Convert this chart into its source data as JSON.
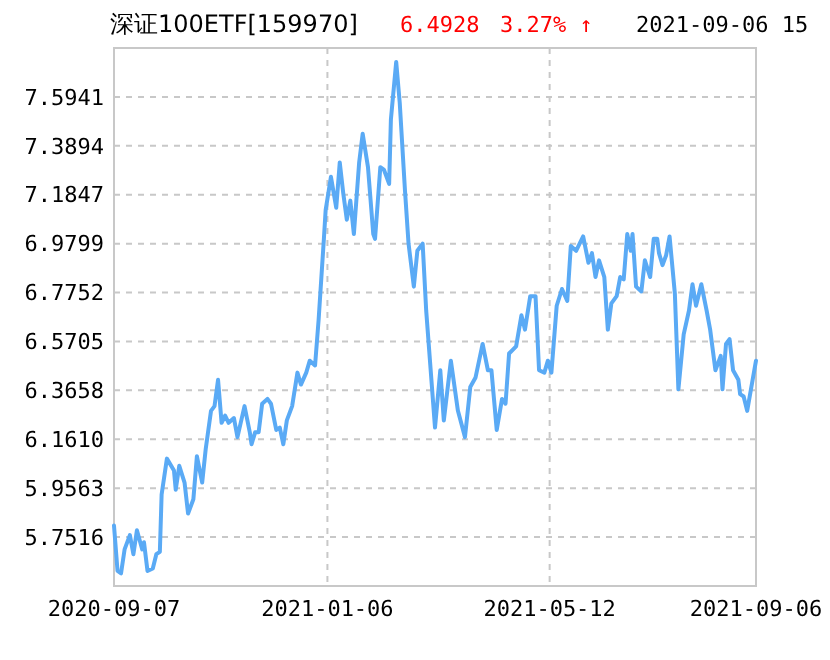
{
  "chart_data": {
    "type": "line",
    "title": "深证100ETF[159970]",
    "annotations": [
      "6.4928",
      "3.27% ↑",
      "2021-09-06 15"
    ],
    "x": [
      "2020-09-07",
      "2020-09-09",
      "2020-09-11",
      "2020-09-13",
      "2020-09-16",
      "2020-09-18",
      "2020-09-20",
      "2020-09-23",
      "2020-09-24",
      "2020-09-26",
      "2020-09-29",
      "2020-10-01",
      "2020-10-03",
      "2020-10-04",
      "2020-10-07",
      "2020-10-11",
      "2020-10-12",
      "2020-10-14",
      "2020-10-17",
      "2020-10-19",
      "2020-10-22",
      "2020-10-24",
      "2020-10-27",
      "2020-10-29",
      "2020-11-01",
      "2020-11-03",
      "2020-11-05",
      "2020-11-07",
      "2020-11-09",
      "2020-11-11",
      "2020-11-14",
      "2020-11-16",
      "2020-11-20",
      "2020-11-23",
      "2020-11-24",
      "2020-11-26",
      "2020-11-28",
      "2020-11-30",
      "2020-12-03",
      "2020-12-05",
      "2020-12-08",
      "2020-12-10",
      "2020-12-12",
      "2020-12-14",
      "2020-12-17",
      "2020-12-20",
      "2020-12-22",
      "2020-12-25",
      "2020-12-27",
      "2020-12-30",
      "2021-01-01",
      "2021-01-04",
      "2021-01-05",
      "2021-01-08",
      "2021-01-11",
      "2021-01-13",
      "2021-01-15",
      "2021-01-17",
      "2021-01-19",
      "2021-01-21",
      "2021-01-24",
      "2021-01-26",
      "2021-01-29",
      "2021-02-01",
      "2021-02-02",
      "2021-02-05",
      "2021-02-07",
      "2021-02-10",
      "2021-02-11",
      "2021-02-14",
      "2021-02-16",
      "2021-02-19",
      "2021-02-21",
      "2021-02-24",
      "2021-02-26",
      "2021-03-01",
      "2021-03-03",
      "2021-03-08",
      "2021-03-11",
      "2021-03-13",
      "2021-03-17",
      "2021-03-21",
      "2021-03-25",
      "2021-03-28",
      "2021-03-31",
      "2021-04-04",
      "2021-04-07",
      "2021-04-09",
      "2021-04-12",
      "2021-04-15",
      "2021-04-17",
      "2021-04-19",
      "2021-04-23",
      "2021-04-26",
      "2021-04-28",
      "2021-05-01",
      "2021-05-04",
      "2021-05-06",
      "2021-05-09",
      "2021-05-11",
      "2021-05-13",
      "2021-05-16",
      "2021-05-19",
      "2021-05-22",
      "2021-05-24",
      "2021-05-27",
      "2021-05-31",
      "2021-06-03",
      "2021-06-05",
      "2021-06-07",
      "2021-06-09",
      "2021-06-12",
      "2021-06-14",
      "2021-06-16",
      "2021-06-19",
      "2021-06-21",
      "2021-06-23",
      "2021-06-25",
      "2021-06-27",
      "2021-06-28",
      "2021-06-30",
      "2021-07-03",
      "2021-07-05",
      "2021-07-08",
      "2021-07-10",
      "2021-07-12",
      "2021-07-13",
      "2021-07-15",
      "2021-07-17",
      "2021-07-19",
      "2021-07-22",
      "2021-07-24",
      "2021-07-27",
      "2021-07-30",
      "2021-08-01",
      "2021-08-03",
      "2021-08-06",
      "2021-08-09",
      "2021-08-11",
      "2021-08-14",
      "2021-08-17",
      "2021-08-18",
      "2021-08-20",
      "2021-08-22",
      "2021-08-24",
      "2021-08-27",
      "2021-08-28",
      "2021-08-30",
      "2021-09-01",
      "2021-09-06"
    ],
    "series": [
      {
        "color": "#5aaaf5",
        "values": [
          5.8,
          5.61,
          5.6,
          5.7,
          5.76,
          5.68,
          5.78,
          5.7,
          5.73,
          5.61,
          5.62,
          5.68,
          5.69,
          5.93,
          6.08,
          6.03,
          5.95,
          6.05,
          5.98,
          5.85,
          5.91,
          6.09,
          5.98,
          6.12,
          6.28,
          6.3,
          6.41,
          6.23,
          6.26,
          6.23,
          6.25,
          6.17,
          6.3,
          6.19,
          6.14,
          6.19,
          6.19,
          6.31,
          6.33,
          6.31,
          6.2,
          6.21,
          6.14,
          6.24,
          6.3,
          6.44,
          6.39,
          6.44,
          6.49,
          6.47,
          6.66,
          7.0,
          7.12,
          7.26,
          7.13,
          7.32,
          7.19,
          7.08,
          7.16,
          7.02,
          7.32,
          7.44,
          7.3,
          7.02,
          7.0,
          7.3,
          7.29,
          7.23,
          7.5,
          7.74,
          7.57,
          7.2,
          6.98,
          6.8,
          6.95,
          6.98,
          6.7,
          6.21,
          6.45,
          6.24,
          6.49,
          6.28,
          6.17,
          6.38,
          6.42,
          6.56,
          6.45,
          6.45,
          6.2,
          6.33,
          6.31,
          6.52,
          6.55,
          6.68,
          6.62,
          6.76,
          6.76,
          6.45,
          6.44,
          6.49,
          6.44,
          6.72,
          6.79,
          6.74,
          6.97,
          6.95,
          7.01,
          6.9,
          6.94,
          6.84,
          6.91,
          6.84,
          6.62,
          6.73,
          6.76,
          6.84,
          6.83,
          7.02,
          6.95,
          7.02,
          6.8,
          6.78,
          6.91,
          6.84,
          7.0,
          7.0,
          6.94,
          6.89,
          6.93,
          7.01,
          6.77,
          6.37,
          6.6,
          6.7,
          6.81,
          6.72,
          6.81,
          6.7,
          6.62,
          6.45,
          6.51,
          6.37,
          6.56,
          6.58,
          6.45,
          6.41,
          6.35,
          6.34,
          6.28,
          6.49
        ]
      }
    ],
    "xlim": [
      "2020-09-07",
      "2021-09-06"
    ],
    "xticks": [
      {
        "value": "2020-09-07",
        "label": "2020-09-07"
      },
      {
        "value": "2021-01-06",
        "label": "2021-01-06"
      },
      {
        "value": "2021-05-12",
        "label": "2021-05-12"
      },
      {
        "value": "2021-09-06",
        "label": "2021-09-06"
      }
    ],
    "ylim": [
      5.5469,
      7.7988
    ],
    "yticks": [
      5.7516,
      5.9563,
      {
        "value": 6.161,
        "label": "6.1610"
      },
      6.3658,
      6.5705,
      6.7752,
      6.9799,
      7.1847,
      7.3894,
      7.5941
    ],
    "grid": true
  }
}
